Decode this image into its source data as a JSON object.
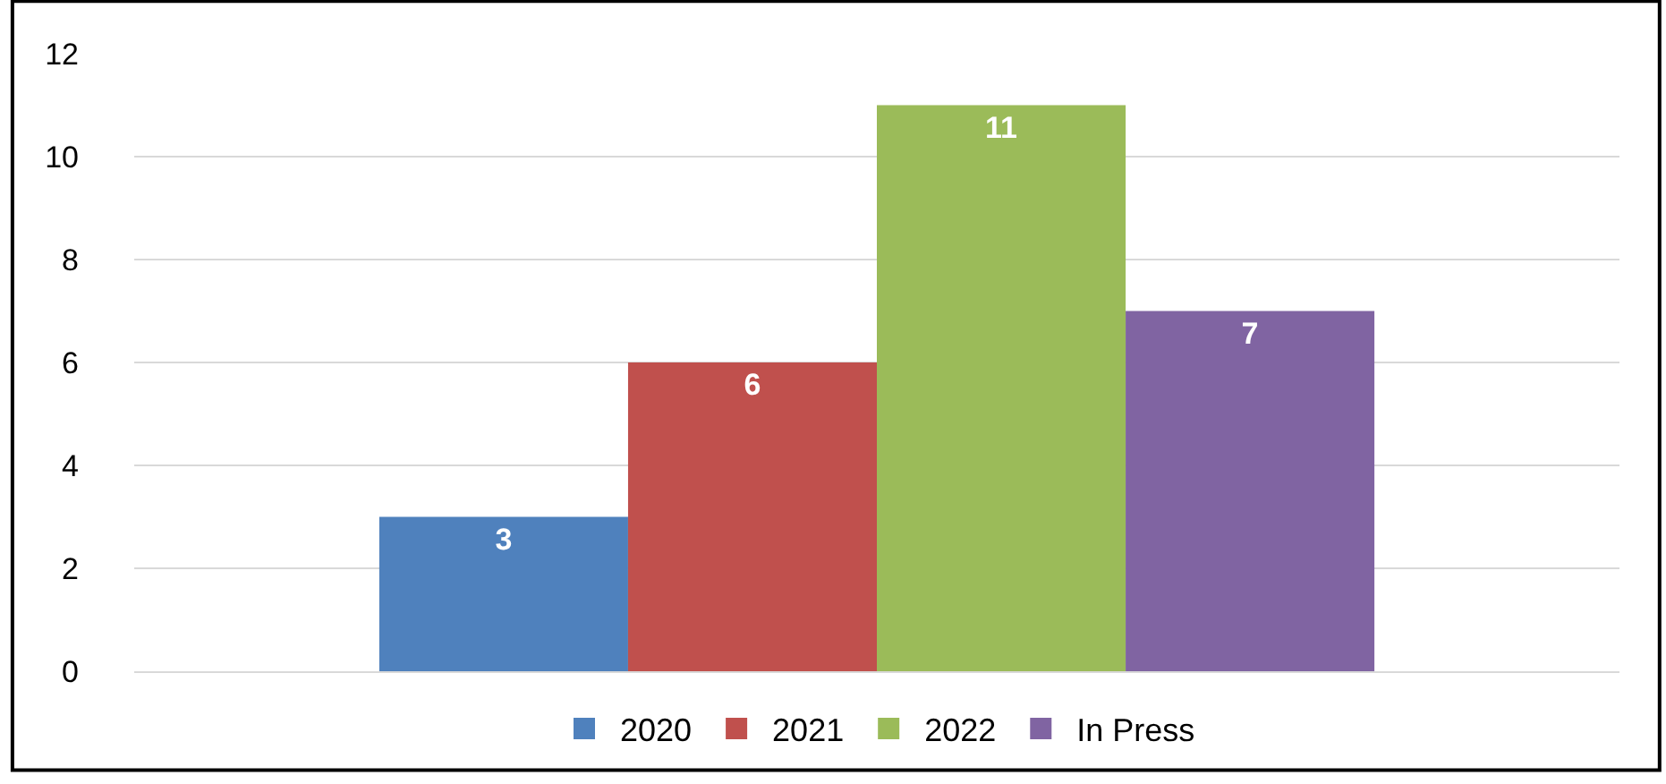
{
  "chart_data": {
    "type": "bar",
    "categories": [
      null
    ],
    "series": [
      {
        "name": "2020",
        "color": "#4f81bd",
        "values": [
          3
        ]
      },
      {
        "name": "2021",
        "color": "#c0504d",
        "values": [
          6
        ]
      },
      {
        "name": "2022",
        "color": "#9bbb59",
        "values": [
          11
        ]
      },
      {
        "name": "In Press",
        "color": "#8064a2",
        "values": [
          7
        ]
      }
    ],
    "ylim": [
      0,
      12
    ],
    "yticks": [
      0,
      2,
      4,
      6,
      8,
      10,
      12
    ],
    "grid": "y",
    "legend": "bottom",
    "data_labels": true
  }
}
